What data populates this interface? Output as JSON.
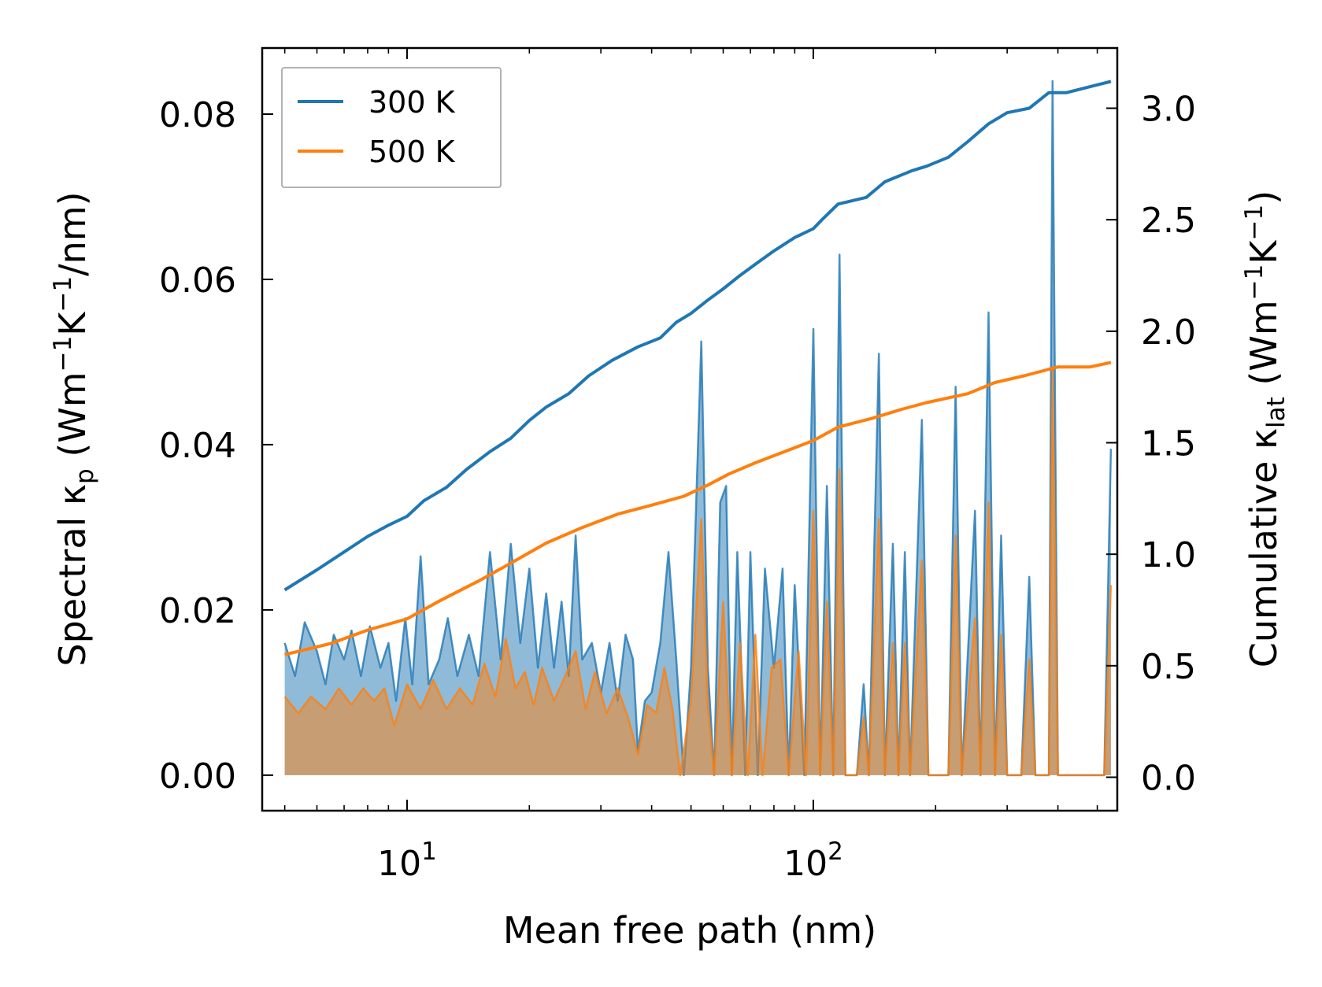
{
  "chart_data": {
    "type": "line",
    "xlabel": "Mean free path (nm)",
    "ylabel_left": {
      "main": "Spectral κ",
      "sub": "p",
      "units_open": " (Wm",
      "exp1": "−1",
      "mid": "K",
      "exp2": "−1",
      "units_close": "/nm)"
    },
    "ylabel_right": {
      "main": "Cumulative κ",
      "sub": "lat",
      "units_open": " (Wm",
      "exp1": "−1",
      "mid": "K",
      "exp2": "−1",
      "units_close": ")"
    },
    "x_scale": "log",
    "xlim": [
      4.4,
      560
    ],
    "ylim_left": [
      -0.0043,
      0.088
    ],
    "ylim_right": [
      -0.15,
      3.27
    ],
    "x_ticks": [
      {
        "value": 10,
        "base": "10",
        "exp": "1"
      },
      {
        "value": 100,
        "base": "10",
        "exp": "2"
      }
    ],
    "y_ticks_left": [
      "0.00",
      "0.02",
      "0.04",
      "0.06",
      "0.08"
    ],
    "y_ticks_right": [
      "0.0",
      "0.5",
      "1.0",
      "1.5",
      "2.0",
      "2.5",
      "3.0"
    ],
    "legend": [
      {
        "label": "300 K",
        "color": "#1f77b4"
      },
      {
        "label": "500 K",
        "color": "#ff7f0e"
      }
    ],
    "legend_position": "top-left",
    "cumulative": {
      "300 K": {
        "color": "#1f77b4",
        "points": [
          [
            5.0,
            0.84
          ],
          [
            6.0,
            0.93
          ],
          [
            7.0,
            1.01
          ],
          [
            8.0,
            1.08
          ],
          [
            9.0,
            1.13
          ],
          [
            10.0,
            1.17
          ],
          [
            11.0,
            1.24
          ],
          [
            12.5,
            1.3
          ],
          [
            14.0,
            1.38
          ],
          [
            16.0,
            1.46
          ],
          [
            18.0,
            1.52
          ],
          [
            20.0,
            1.6
          ],
          [
            22.0,
            1.66
          ],
          [
            25.0,
            1.72
          ],
          [
            28.0,
            1.8
          ],
          [
            32.0,
            1.87
          ],
          [
            37.0,
            1.93
          ],
          [
            42.0,
            1.97
          ],
          [
            46.0,
            2.04
          ],
          [
            50.0,
            2.08
          ],
          [
            55.0,
            2.14
          ],
          [
            60.0,
            2.19
          ],
          [
            66.0,
            2.25
          ],
          [
            72.0,
            2.3
          ],
          [
            80.0,
            2.36
          ],
          [
            90.0,
            2.42
          ],
          [
            100.0,
            2.46
          ],
          [
            105.0,
            2.5
          ],
          [
            115.0,
            2.57
          ],
          [
            135.0,
            2.6
          ],
          [
            150.0,
            2.67
          ],
          [
            175.0,
            2.72
          ],
          [
            190.0,
            2.74
          ],
          [
            215.0,
            2.78
          ],
          [
            240.0,
            2.85
          ],
          [
            270.0,
            2.93
          ],
          [
            300.0,
            2.98
          ],
          [
            340.0,
            3.0
          ],
          [
            380.0,
            3.07
          ],
          [
            420.0,
            3.07
          ],
          [
            540.0,
            3.12
          ]
        ]
      },
      "500 K": {
        "color": "#ff7f0e",
        "points": [
          [
            5.0,
            0.55
          ],
          [
            6.5,
            0.6
          ],
          [
            8.0,
            0.66
          ],
          [
            10.0,
            0.71
          ],
          [
            12.0,
            0.79
          ],
          [
            15.0,
            0.88
          ],
          [
            18.0,
            0.96
          ],
          [
            22.0,
            1.05
          ],
          [
            27.0,
            1.12
          ],
          [
            33.0,
            1.18
          ],
          [
            40.0,
            1.22
          ],
          [
            48.0,
            1.26
          ],
          [
            55.0,
            1.31
          ],
          [
            62.0,
            1.36
          ],
          [
            72.0,
            1.41
          ],
          [
            85.0,
            1.46
          ],
          [
            100.0,
            1.51
          ],
          [
            115.0,
            1.57
          ],
          [
            140.0,
            1.61
          ],
          [
            165.0,
            1.65
          ],
          [
            190.0,
            1.68
          ],
          [
            240.0,
            1.72
          ],
          [
            280.0,
            1.77
          ],
          [
            330.0,
            1.8
          ],
          [
            400.0,
            1.84
          ],
          [
            480.0,
            1.84
          ],
          [
            540.0,
            1.86
          ]
        ]
      }
    },
    "spectral": {
      "300 K": {
        "color": "#1f77b4",
        "points": [
          [
            5.0,
            0.016
          ],
          [
            5.3,
            0.012
          ],
          [
            5.6,
            0.0185
          ],
          [
            6.0,
            0.015
          ],
          [
            6.3,
            0.011
          ],
          [
            6.6,
            0.017
          ],
          [
            7.0,
            0.014
          ],
          [
            7.3,
            0.0175
          ],
          [
            7.7,
            0.012
          ],
          [
            8.1,
            0.018
          ],
          [
            8.6,
            0.013
          ],
          [
            9.0,
            0.016
          ],
          [
            9.4,
            0.009
          ],
          [
            9.9,
            0.019
          ],
          [
            10.3,
            0.011
          ],
          [
            10.8,
            0.0265
          ],
          [
            11.3,
            0.011
          ],
          [
            12.0,
            0.014
          ],
          [
            12.6,
            0.019
          ],
          [
            13.3,
            0.012
          ],
          [
            14.2,
            0.017
          ],
          [
            15.0,
            0.012
          ],
          [
            16.0,
            0.027
          ],
          [
            17.0,
            0.014
          ],
          [
            18.0,
            0.028
          ],
          [
            19.0,
            0.016
          ],
          [
            20.0,
            0.025
          ],
          [
            21.0,
            0.013
          ],
          [
            22.0,
            0.022
          ],
          [
            23.0,
            0.013
          ],
          [
            24.0,
            0.021
          ],
          [
            25.0,
            0.012
          ],
          [
            26.0,
            0.029
          ],
          [
            27.0,
            0.014
          ],
          [
            28.5,
            0.016
          ],
          [
            30.0,
            0.01
          ],
          [
            31.5,
            0.016
          ],
          [
            33.0,
            0.009
          ],
          [
            34.5,
            0.017
          ],
          [
            36.0,
            0.014
          ],
          [
            37.0,
            0.003
          ],
          [
            38.5,
            0.009
          ],
          [
            40.0,
            0.01
          ],
          [
            42.0,
            0.016
          ],
          [
            44.0,
            0.027
          ],
          [
            46.0,
            0.014
          ],
          [
            48.0,
            0.0
          ],
          [
            50.0,
            0.013
          ],
          [
            53.0,
            0.0525
          ],
          [
            55.0,
            0.013
          ],
          [
            57.0,
            0.0
          ],
          [
            59.0,
            0.033
          ],
          [
            61.0,
            0.035
          ],
          [
            63.0,
            0.0
          ],
          [
            65.0,
            0.027
          ],
          [
            68.0,
            0.0
          ],
          [
            70.0,
            0.027
          ],
          [
            73.0,
            0.0
          ],
          [
            76.0,
            0.025
          ],
          [
            80.0,
            0.013
          ],
          [
            84.0,
            0.025
          ],
          [
            87.0,
            0.0
          ],
          [
            90.0,
            0.023
          ],
          [
            95.0,
            0.0
          ],
          [
            100.0,
            0.054
          ],
          [
            104.0,
            0.0
          ],
          [
            108.0,
            0.035
          ],
          [
            112.0,
            0.0
          ],
          [
            116.0,
            0.063
          ],
          [
            120.0,
            0.0
          ],
          [
            128.0,
            0.0
          ],
          [
            133.0,
            0.011
          ],
          [
            137.0,
            0.0
          ],
          [
            145.0,
            0.051
          ],
          [
            150.0,
            0.0
          ],
          [
            157.0,
            0.028
          ],
          [
            162.0,
            0.0
          ],
          [
            168.0,
            0.027
          ],
          [
            173.0,
            0.0
          ],
          [
            185.0,
            0.043
          ],
          [
            192.0,
            0.0
          ],
          [
            215.0,
            0.0
          ],
          [
            224.0,
            0.047
          ],
          [
            232.0,
            0.0
          ],
          [
            250.0,
            0.032
          ],
          [
            258.0,
            0.0
          ],
          [
            270.0,
            0.056
          ],
          [
            280.0,
            0.0
          ],
          [
            290.0,
            0.029
          ],
          [
            300.0,
            0.0
          ],
          [
            325.0,
            0.0
          ],
          [
            340.0,
            0.024
          ],
          [
            352.0,
            0.0
          ],
          [
            380.0,
            0.0
          ],
          [
            388.0,
            0.084
          ],
          [
            400.0,
            0.0
          ],
          [
            520.0,
            0.0
          ],
          [
            540.0,
            0.0395
          ]
        ]
      },
      "500 K": {
        "color": "#ff7f0e",
        "points": [
          [
            5.0,
            0.0095
          ],
          [
            5.4,
            0.0075
          ],
          [
            5.8,
            0.0095
          ],
          [
            6.3,
            0.008
          ],
          [
            6.8,
            0.0105
          ],
          [
            7.3,
            0.0085
          ],
          [
            7.8,
            0.0105
          ],
          [
            8.3,
            0.009
          ],
          [
            8.8,
            0.0105
          ],
          [
            9.3,
            0.006
          ],
          [
            10.0,
            0.011
          ],
          [
            10.8,
            0.008
          ],
          [
            11.6,
            0.0115
          ],
          [
            12.5,
            0.008
          ],
          [
            13.5,
            0.0105
          ],
          [
            14.5,
            0.0085
          ],
          [
            15.5,
            0.0135
          ],
          [
            16.5,
            0.0095
          ],
          [
            17.5,
            0.0165
          ],
          [
            18.5,
            0.0105
          ],
          [
            19.5,
            0.0125
          ],
          [
            20.5,
            0.0085
          ],
          [
            21.5,
            0.013
          ],
          [
            23.0,
            0.009
          ],
          [
            24.5,
            0.012
          ],
          [
            26.0,
            0.015
          ],
          [
            27.5,
            0.008
          ],
          [
            29.0,
            0.0125
          ],
          [
            31.0,
            0.0075
          ],
          [
            33.0,
            0.0105
          ],
          [
            35.0,
            0.007
          ],
          [
            37.0,
            0.0025
          ],
          [
            39.0,
            0.0085
          ],
          [
            41.0,
            0.0075
          ],
          [
            43.0,
            0.013
          ],
          [
            45.0,
            0.008
          ],
          [
            47.0,
            0.0
          ],
          [
            50.0,
            0.009
          ],
          [
            53.0,
            0.031
          ],
          [
            55.0,
            0.0085
          ],
          [
            57.0,
            0.0
          ],
          [
            60.0,
            0.021
          ],
          [
            63.0,
            0.0
          ],
          [
            66.0,
            0.016
          ],
          [
            69.0,
            0.0
          ],
          [
            72.0,
            0.017
          ],
          [
            75.0,
            0.0
          ],
          [
            79.0,
            0.013
          ],
          [
            83.0,
            0.014
          ],
          [
            87.0,
            0.0
          ],
          [
            92.0,
            0.015
          ],
          [
            96.0,
            0.0
          ],
          [
            100.0,
            0.032
          ],
          [
            104.0,
            0.0
          ],
          [
            108.0,
            0.021
          ],
          [
            112.0,
            0.0
          ],
          [
            116.0,
            0.037
          ],
          [
            120.0,
            0.0
          ],
          [
            128.0,
            0.0
          ],
          [
            133.0,
            0.007
          ],
          [
            137.0,
            0.0
          ],
          [
            145.0,
            0.031
          ],
          [
            150.0,
            0.0
          ],
          [
            157.0,
            0.016
          ],
          [
            162.0,
            0.0
          ],
          [
            168.0,
            0.016
          ],
          [
            173.0,
            0.0
          ],
          [
            185.0,
            0.026
          ],
          [
            192.0,
            0.0
          ],
          [
            215.0,
            0.0
          ],
          [
            224.0,
            0.029
          ],
          [
            232.0,
            0.0
          ],
          [
            250.0,
            0.019
          ],
          [
            258.0,
            0.0
          ],
          [
            270.0,
            0.033
          ],
          [
            280.0,
            0.0
          ],
          [
            290.0,
            0.017
          ],
          [
            300.0,
            0.0
          ],
          [
            325.0,
            0.0
          ],
          [
            340.0,
            0.014
          ],
          [
            352.0,
            0.0
          ],
          [
            380.0,
            0.0
          ],
          [
            388.0,
            0.049
          ],
          [
            400.0,
            0.0
          ],
          [
            520.0,
            0.0
          ],
          [
            540.0,
            0.023
          ]
        ]
      }
    }
  }
}
